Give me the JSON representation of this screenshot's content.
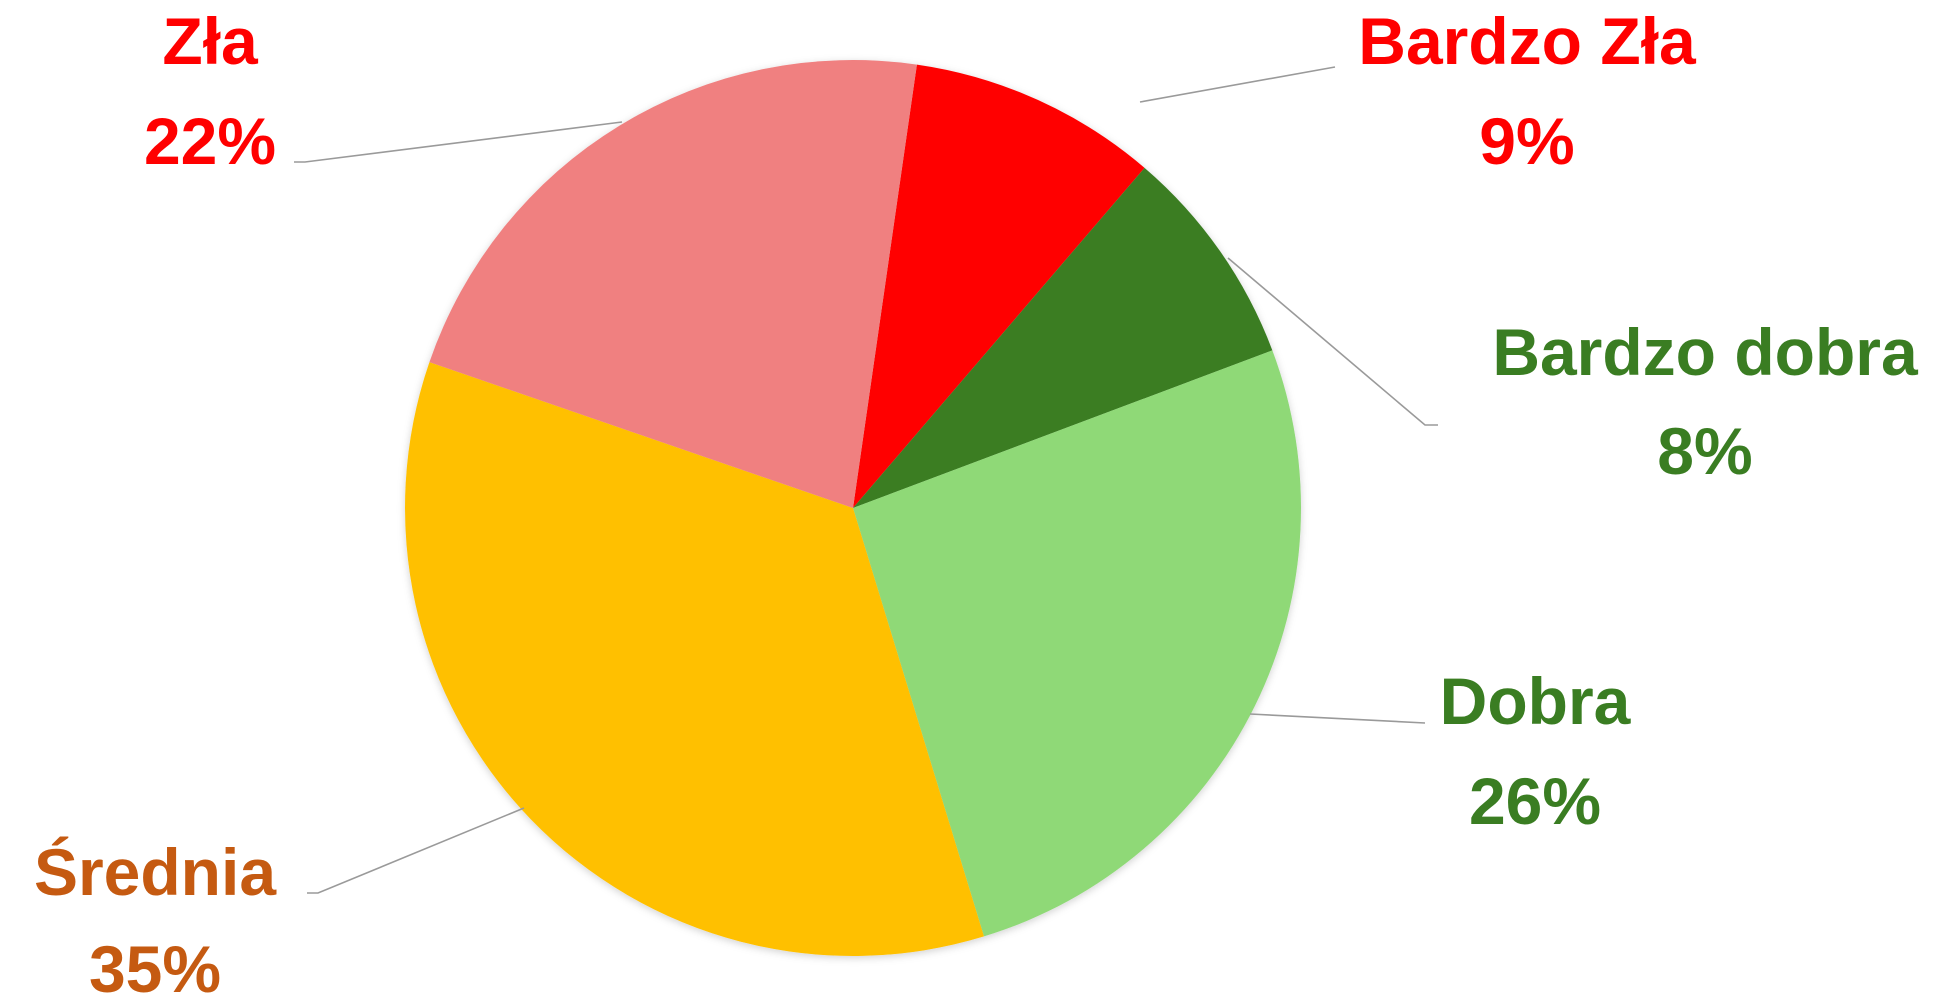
{
  "chart_data": {
    "type": "pie",
    "title": "",
    "unit": "%",
    "slices": [
      {
        "name": "Bardzo Zła",
        "value": 9,
        "label_text": "9%",
        "color": "#ff0000",
        "label_color": "#ff0000"
      },
      {
        "name": "Bardzo dobra",
        "value": 8,
        "label_text": "8%",
        "color": "#3a7d22",
        "label_color": "#3a7d22"
      },
      {
        "name": "Dobra",
        "value": 26,
        "label_text": "26%",
        "color": "#8fd977",
        "label_color": "#3a7d22"
      },
      {
        "name": "Średnia",
        "value": 35,
        "label_text": "35%",
        "color": "#ffc000",
        "label_color": "#c55a11"
      },
      {
        "name": "Zła",
        "value": 22,
        "label_text": "22%",
        "color": "#f08080",
        "label_color": "#ff0000"
      }
    ],
    "legend": "none",
    "data_labels": "outside-with-leader-lines"
  }
}
